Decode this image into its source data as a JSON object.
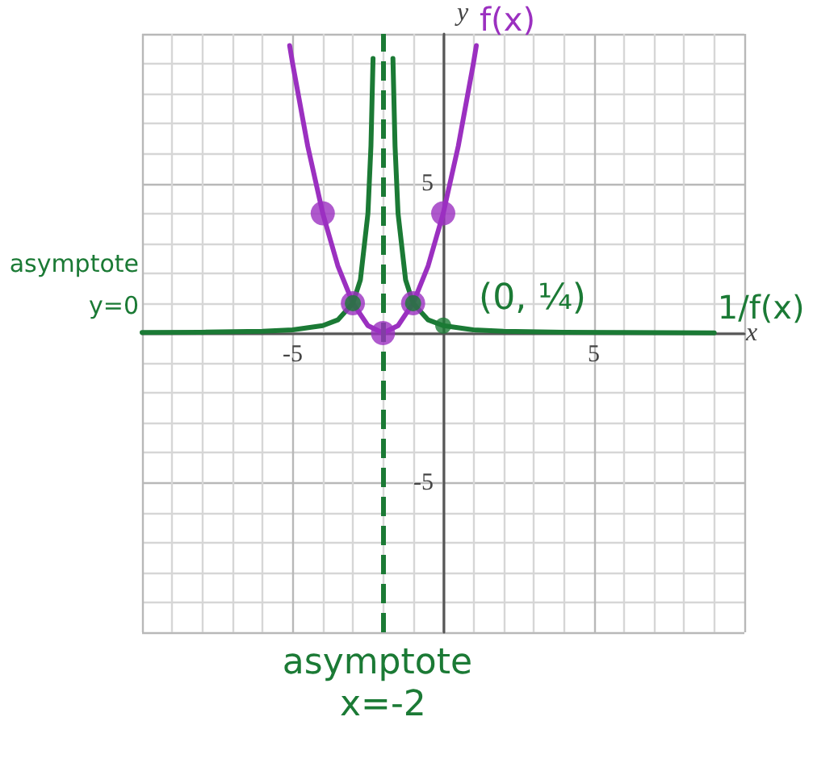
{
  "chart_data": {
    "type": "line",
    "xlabel": "x",
    "ylabel": "y",
    "xlim": [
      -10,
      10
    ],
    "ylim": [
      -10,
      10
    ],
    "xticks": [
      {
        "value": -10,
        "label": null
      },
      {
        "value": -9,
        "label": null
      },
      {
        "value": -8,
        "label": null
      },
      {
        "value": -7,
        "label": null
      },
      {
        "value": -6,
        "label": null
      },
      -5,
      {
        "value": -4,
        "label": null
      },
      {
        "value": -3,
        "label": null
      },
      {
        "value": -2,
        "label": null
      },
      {
        "value": -1,
        "label": null
      },
      {
        "value": 0,
        "label": null
      },
      {
        "value": 1,
        "label": null
      },
      {
        "value": 2,
        "label": null
      },
      {
        "value": 3,
        "label": null
      },
      {
        "value": 4,
        "label": null
      },
      5,
      {
        "value": 6,
        "label": null
      },
      {
        "value": 7,
        "label": null
      },
      {
        "value": 8,
        "label": null
      },
      {
        "value": 9,
        "label": null
      },
      {
        "value": 10,
        "label": null
      }
    ],
    "yticks": [
      {
        "value": -10,
        "label": null
      },
      {
        "value": -9,
        "label": null
      },
      {
        "value": -8,
        "label": null
      },
      {
        "value": -7,
        "label": null
      },
      {
        "value": -6,
        "label": null
      },
      -5,
      {
        "value": -4,
        "label": null
      },
      {
        "value": -3,
        "label": null
      },
      {
        "value": -2,
        "label": null
      },
      {
        "value": -1,
        "label": null
      },
      {
        "value": 0,
        "label": null
      },
      {
        "value": 1,
        "label": null
      },
      {
        "value": 2,
        "label": null
      },
      {
        "value": 3,
        "label": null
      },
      {
        "value": 4,
        "label": null
      },
      5,
      {
        "value": 6,
        "label": null
      },
      {
        "value": 7,
        "label": null
      },
      {
        "value": 8,
        "label": null
      },
      {
        "value": 9,
        "label": null
      },
      {
        "value": 10,
        "label": null
      }
    ],
    "grid": true,
    "legend": false,
    "marker": "none",
    "line_style": "solid",
    "series": [
      {
        "name": "f(x)",
        "color": "#9b30c0",
        "x": [
          -5.1,
          -5,
          -4.5,
          -4,
          -3.5,
          -3,
          -2.5,
          -2,
          -1.5,
          -1,
          -0.5,
          0,
          0.5,
          1,
          1.1
        ],
        "values": [
          9.61,
          9,
          6.25,
          4,
          2.25,
          1,
          0.25,
          0,
          0.25,
          1,
          2.25,
          4,
          6.25,
          9,
          9.61
        ]
      },
      {
        "name": "1/f(x)",
        "color": "#1b7a35",
        "x": [
          -10,
          -8,
          -6,
          -5,
          -4,
          -3.5,
          -3,
          -2.75,
          -2.5,
          -2.4,
          -2.33,
          -2,
          -1.67,
          -1.6,
          -1.5,
          -1.25,
          -1,
          -0.5,
          0,
          1,
          2,
          4,
          6,
          9
        ],
        "values": [
          0.02,
          0.03,
          0.06,
          0.11,
          0.25,
          0.44,
          1,
          1.78,
          4,
          6.25,
          9.18,
          null,
          9.18,
          6.25,
          4,
          1.78,
          1,
          0.44,
          0.25,
          0.11,
          0.06,
          0.03,
          0.02,
          0.01
        ]
      },
      {
        "type": "scatter",
        "marker": "circle",
        "color": "#9b30c0",
        "x": [
          -4,
          -3,
          -2,
          -1,
          0
        ],
        "values": [
          4,
          1,
          0,
          1,
          4
        ]
      },
      {
        "type": "scatter",
        "marker": "circle",
        "color": "#1b7a35",
        "x": [
          -3,
          -1,
          0
        ],
        "values": [
          1,
          1,
          0.25
        ]
      }
    ],
    "ref_lines": [
      {
        "axis": "x",
        "value": -2,
        "label": "asymptote x=-2",
        "color": "#1b7a35",
        "line_style": "dashed"
      }
    ],
    "annotations": [
      {
        "text": "asymptote y=0",
        "x": -10,
        "y": 0
      },
      {
        "text": "(0, ¼)",
        "x": 0,
        "y": 0.25
      }
    ]
  }
}
